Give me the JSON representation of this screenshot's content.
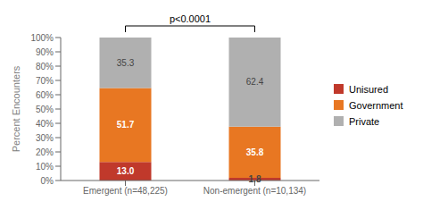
{
  "chart_data": {
    "type": "bar",
    "stacked": true,
    "categories": [
      "Emergent (n=48,225)",
      "Non-emergent (n=10,134)"
    ],
    "series": [
      {
        "name": "Unisured",
        "color": "#c0392b",
        "values": [
          13.0,
          1.8
        ],
        "value_labels": [
          "13.0",
          "1.8"
        ]
      },
      {
        "name": "Government",
        "color": "#e87722",
        "values": [
          51.7,
          35.8
        ],
        "value_labels": [
          "51.7",
          "35.8"
        ]
      },
      {
        "name": "Private",
        "color": "#b0b0b0",
        "values": [
          35.3,
          62.4
        ],
        "value_labels": [
          "35.3",
          "62.4"
        ]
      }
    ],
    "ylabel": "Percent Encounters",
    "ylim": [
      0,
      100
    ],
    "yticks": [
      {
        "value": 0,
        "label": "0%"
      },
      {
        "value": 10,
        "label": "10%"
      },
      {
        "value": 20,
        "label": "20%"
      },
      {
        "value": 30,
        "label": "30%"
      },
      {
        "value": 40,
        "label": "40%"
      },
      {
        "value": 50,
        "label": "50%"
      },
      {
        "value": 60,
        "label": "60%"
      },
      {
        "value": 70,
        "label": "70%"
      },
      {
        "value": 80,
        "label": "80%"
      },
      {
        "value": 90,
        "label": "90%"
      },
      {
        "value": 100,
        "label": "100%"
      }
    ],
    "annotations": [
      "p<0.0001"
    ],
    "data_labels": true,
    "legend": "right",
    "grid": false
  }
}
